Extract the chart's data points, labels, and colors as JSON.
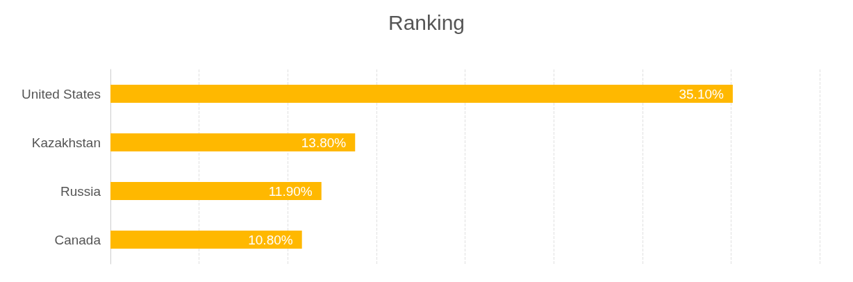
{
  "chart_data": {
    "type": "bar",
    "orientation": "horizontal",
    "title": "Ranking",
    "categories": [
      "United States",
      "Kazakhstan",
      "Russia",
      "Canada"
    ],
    "values": [
      35.1,
      13.8,
      11.9,
      10.8
    ],
    "value_labels": [
      "35.10%",
      "13.80%",
      "11.90%",
      "10.80%"
    ],
    "color": "#ffb800",
    "xlim": [
      0,
      40
    ],
    "xticks": [
      {
        "value": 0,
        "label": null
      },
      {
        "value": 5,
        "label": null
      },
      {
        "value": 10,
        "label": null
      },
      {
        "value": 15,
        "label": null
      },
      {
        "value": 20,
        "label": null
      },
      {
        "value": 25,
        "label": null
      },
      {
        "value": 30,
        "label": null
      },
      {
        "value": 35,
        "label": null
      },
      {
        "value": 40,
        "label": null
      }
    ],
    "tick_labels": "y",
    "grid": "x"
  }
}
